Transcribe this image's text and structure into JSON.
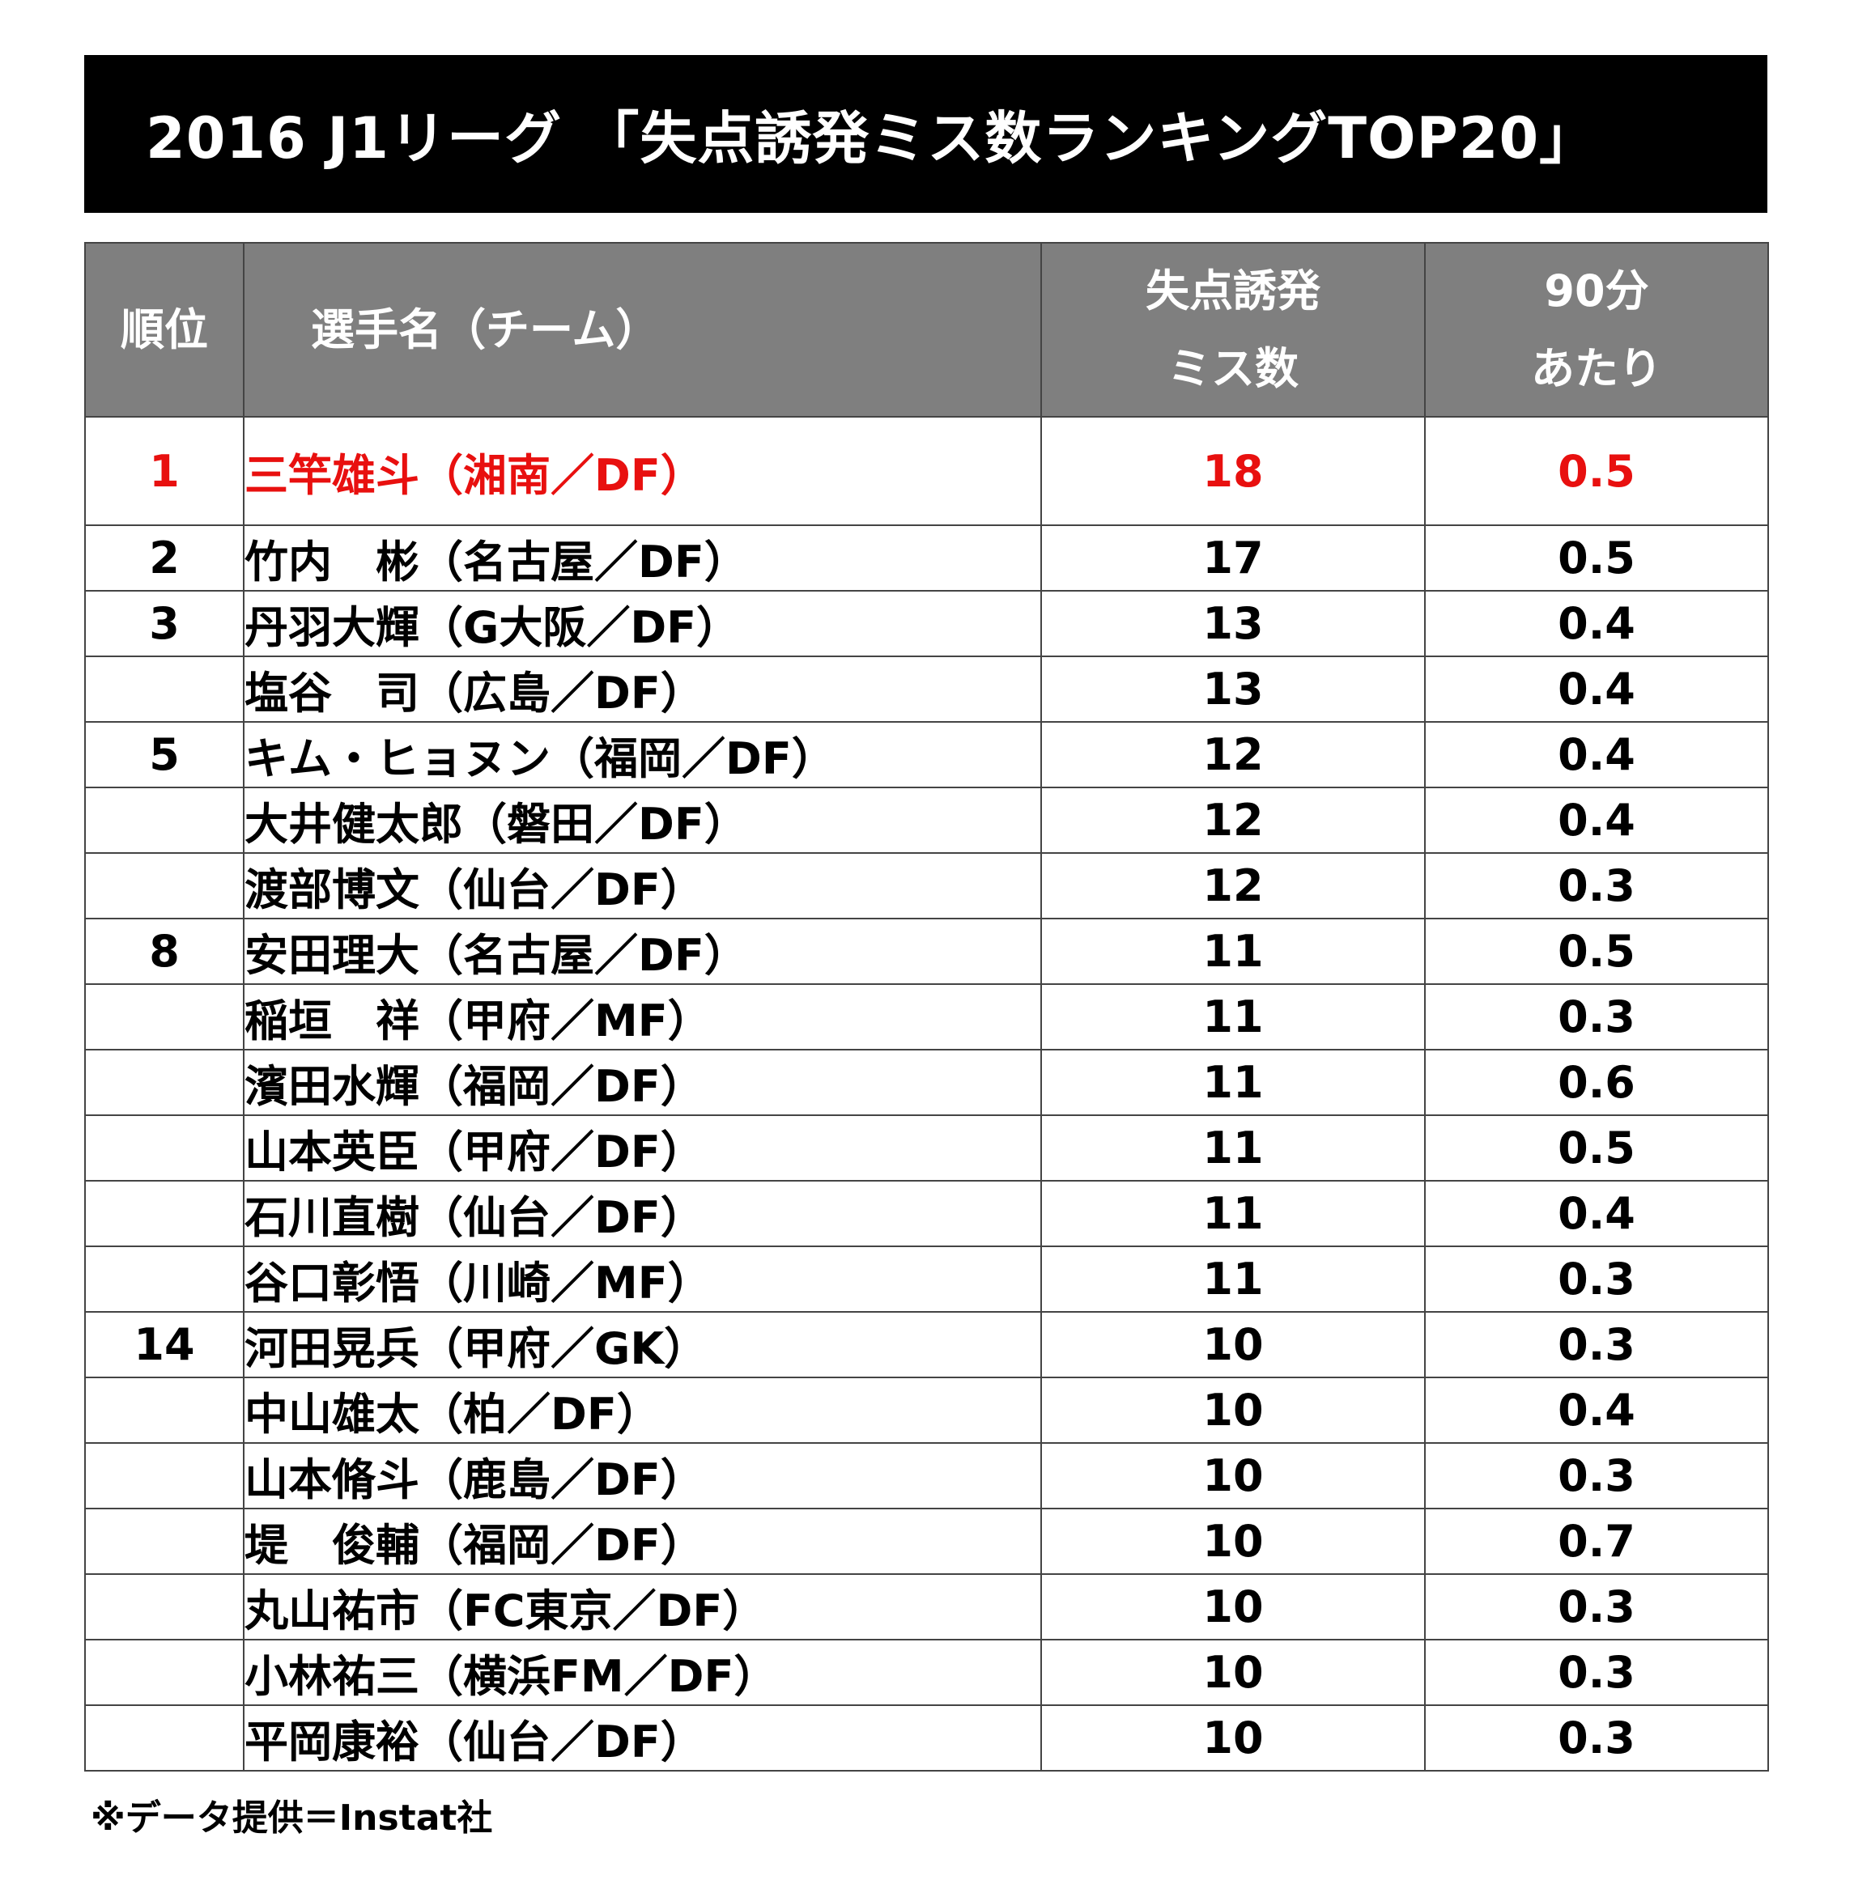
{
  "title": "2016 J1リーグ 「失点誘発ミス数ランキングTOP20」",
  "header": {
    "rank": "順位",
    "name": "選手名（チーム）",
    "miss_line1": "失点誘発",
    "miss_line2": "ミス数",
    "per90_line1": "90分",
    "per90_line2": "あたり"
  },
  "colors": {
    "title_bg": "#000000",
    "header_bg": "#7f7f7f",
    "highlight": "#e8100f"
  },
  "rows": [
    {
      "rank": "1",
      "name": "三竿雄斗（湘南／DF）",
      "misses": "18",
      "per90": "0.5"
    },
    {
      "rank": "2",
      "name": "竹内　彬（名古屋／DF）",
      "misses": "17",
      "per90": "0.5"
    },
    {
      "rank": "3",
      "name": "丹羽大輝（G大阪／DF）",
      "misses": "13",
      "per90": "0.4"
    },
    {
      "rank": "",
      "name": "塩谷　司（広島／DF）",
      "misses": "13",
      "per90": "0.4"
    },
    {
      "rank": "5",
      "name": "キム・ヒョヌン（福岡／DF）",
      "misses": "12",
      "per90": "0.4"
    },
    {
      "rank": "",
      "name": "大井健太郎（磐田／DF）",
      "misses": "12",
      "per90": "0.4"
    },
    {
      "rank": "",
      "name": "渡部博文（仙台／DF）",
      "misses": "12",
      "per90": "0.3"
    },
    {
      "rank": "8",
      "name": "安田理大（名古屋／DF）",
      "misses": "11",
      "per90": "0.5"
    },
    {
      "rank": "",
      "name": "稲垣　祥（甲府／MF）",
      "misses": "11",
      "per90": "0.3"
    },
    {
      "rank": "",
      "name": "濱田水輝（福岡／DF）",
      "misses": "11",
      "per90": "0.6"
    },
    {
      "rank": "",
      "name": "山本英臣（甲府／DF）",
      "misses": "11",
      "per90": "0.5"
    },
    {
      "rank": "",
      "name": "石川直樹（仙台／DF）",
      "misses": "11",
      "per90": "0.4"
    },
    {
      "rank": "",
      "name": "谷口彰悟（川崎／MF）",
      "misses": "11",
      "per90": "0.3"
    },
    {
      "rank": "14",
      "name": "河田晃兵（甲府／GK）",
      "misses": "10",
      "per90": "0.3"
    },
    {
      "rank": "",
      "name": "中山雄太（柏／DF）",
      "misses": "10",
      "per90": "0.4"
    },
    {
      "rank": "",
      "name": "山本脩斗（鹿島／DF）",
      "misses": "10",
      "per90": "0.3"
    },
    {
      "rank": "",
      "name": "堤　俊輔（福岡／DF）",
      "misses": "10",
      "per90": "0.7"
    },
    {
      "rank": "",
      "name": "丸山祐市（FC東京／DF）",
      "misses": "10",
      "per90": "0.3"
    },
    {
      "rank": "",
      "name": "小林祐三（横浜FM／DF）",
      "misses": "10",
      "per90": "0.3"
    },
    {
      "rank": "",
      "name": "平岡康裕（仙台／DF）",
      "misses": "10",
      "per90": "0.3"
    }
  ],
  "footnote": "※データ提供＝Instat社"
}
